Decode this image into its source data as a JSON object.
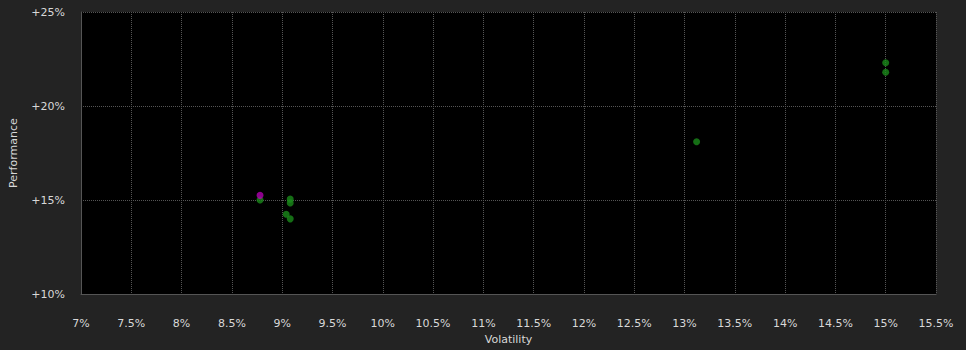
{
  "chart_data": {
    "type": "scatter",
    "x_label": "Volatility",
    "y_label": "Performance",
    "xlim": [
      7,
      15.5
    ],
    "xticks": [
      {
        "value": 7,
        "label": "7%"
      },
      {
        "value": 7.5,
        "label": "7.5%"
      },
      {
        "value": 8,
        "label": "8%"
      },
      {
        "value": 8.5,
        "label": "8.5%"
      },
      {
        "value": 9,
        "label": "9%"
      },
      {
        "value": 9.5,
        "label": "9.5%"
      },
      {
        "value": 10,
        "label": "10%"
      },
      {
        "value": 10.5,
        "label": "10.5%"
      },
      {
        "value": 11,
        "label": "11%"
      },
      {
        "value": 11.5,
        "label": "11.5%"
      },
      {
        "value": 12,
        "label": "12%"
      },
      {
        "value": 12.5,
        "label": "12.5%"
      },
      {
        "value": 13,
        "label": "13%"
      },
      {
        "value": 13.5,
        "label": "13.5%"
      },
      {
        "value": 14,
        "label": "14%"
      },
      {
        "value": 14.5,
        "label": "14.5%"
      },
      {
        "value": 15,
        "label": "15%"
      },
      {
        "value": 15.5,
        "label": "15.5%"
      }
    ],
    "ylim": [
      10,
      25
    ],
    "yticks": [
      {
        "value": 10,
        "label": "+10%"
      },
      {
        "value": 15,
        "label": "+15%"
      },
      {
        "value": 20,
        "label": "+20%"
      },
      {
        "value": 25,
        "label": "+25%"
      }
    ],
    "grid": true,
    "series": [
      {
        "color": "#1a8a1a",
        "marker": "circle",
        "x": [
          8.78,
          9.08,
          9.08,
          9.04,
          9.08,
          13.12,
          15.0,
          15.0
        ],
        "values": [
          15.0,
          15.05,
          14.85,
          14.25,
          14.0,
          18.1,
          22.3,
          21.8
        ]
      },
      {
        "color": "#b000b0",
        "marker": "circle",
        "x": [
          8.78
        ],
        "values": [
          15.25
        ]
      }
    ]
  }
}
